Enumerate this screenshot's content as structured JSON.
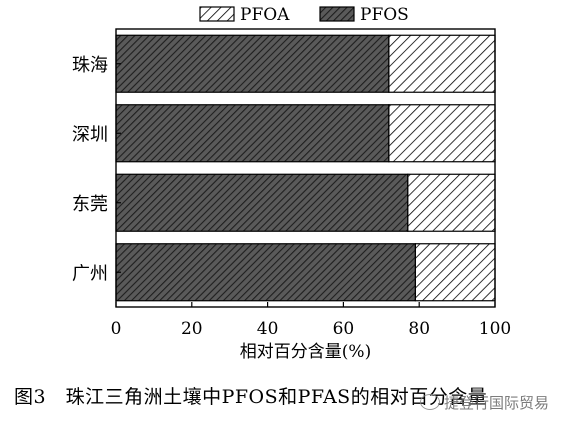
{
  "chart_data": {
    "type": "bar",
    "orientation": "horizontal",
    "stacked": true,
    "categories": [
      "珠海",
      "深圳",
      "东莞",
      "广州"
    ],
    "series": [
      {
        "name": "PFOS",
        "values": [
          72,
          72,
          77,
          79
        ],
        "pattern": "dense-hatch-dark"
      },
      {
        "name": "PFOA",
        "values": [
          28,
          28,
          23,
          21
        ],
        "pattern": "sparse-hatch-light"
      }
    ],
    "legend_order": [
      "PFOA",
      "PFOS"
    ],
    "legend_position": "top",
    "xlabel": "相对百分含量(%)",
    "xlim": [
      0,
      100
    ],
    "xticks": [
      "0",
      "20",
      "40",
      "60",
      "80",
      "100"
    ],
    "grid": false
  },
  "caption": "图3　珠江三角洲土壤中PFOS和PFAS的相对百分含量",
  "watermark": "捷登行国际贸易",
  "colors": {
    "pfos_fill": "#3a3a3a",
    "pfoa_fill": "#ffffff",
    "stroke": "#000000"
  }
}
